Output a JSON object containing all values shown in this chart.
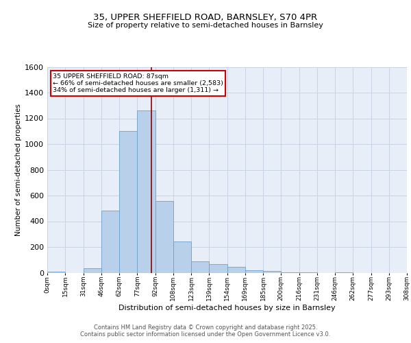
{
  "title1": "35, UPPER SHEFFIELD ROAD, BARNSLEY, S70 4PR",
  "title2": "Size of property relative to semi-detached houses in Barnsley",
  "xlabel": "Distribution of semi-detached houses by size in Barnsley",
  "ylabel": "Number of semi-detached properties",
  "bin_labels": [
    "0sqm",
    "15sqm",
    "31sqm",
    "46sqm",
    "62sqm",
    "77sqm",
    "92sqm",
    "108sqm",
    "123sqm",
    "139sqm",
    "154sqm",
    "169sqm",
    "185sqm",
    "200sqm",
    "216sqm",
    "231sqm",
    "246sqm",
    "262sqm",
    "277sqm",
    "293sqm",
    "308sqm"
  ],
  "bar_heights": [
    10,
    0,
    35,
    485,
    1100,
    1260,
    555,
    245,
    90,
    65,
    45,
    18,
    13,
    5,
    5,
    0,
    5,
    0,
    0,
    0
  ],
  "bar_color": "#b8d0ea",
  "bar_edge_color": "#6ca0cc",
  "grid_color": "#c8d4e4",
  "background_color": "#e8eef8",
  "property_value": 87,
  "bin_size": 15,
  "vline_color": "#8b0000",
  "annotation_text": "35 UPPER SHEFFIELD ROAD: 87sqm\n← 66% of semi-detached houses are smaller (2,583)\n34% of semi-detached houses are larger (1,311) →",
  "annotation_box_color": "white",
  "annotation_box_edge": "#cc0000",
  "footer1": "Contains HM Land Registry data © Crown copyright and database right 2025.",
  "footer2": "Contains public sector information licensed under the Open Government Licence v3.0.",
  "ylim": [
    0,
    1600
  ],
  "yticks": [
    0,
    200,
    400,
    600,
    800,
    1000,
    1200,
    1400,
    1600
  ]
}
